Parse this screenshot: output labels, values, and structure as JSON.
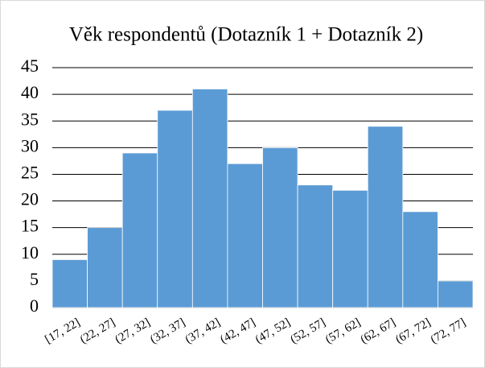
{
  "chart_data": {
    "type": "bar",
    "title": "Věk respondentů (Dotazník 1 + Dotazník 2)",
    "categories": [
      "[17, 22]",
      "(22, 27]",
      "(27, 32]",
      "(32, 37]",
      "(37, 42]",
      "(42, 47]",
      "(47, 52]",
      "(52, 57]",
      "(57, 62]",
      "(62, 67]",
      "(67, 72]",
      "(72, 77]"
    ],
    "values": [
      9,
      15,
      29,
      37,
      41,
      27,
      30,
      23,
      22,
      34,
      18,
      5
    ],
    "color": "#5b9bd5",
    "ylim": [
      0,
      45
    ],
    "yticks": [
      0,
      5,
      10,
      15,
      20,
      25,
      30,
      35,
      40,
      45
    ],
    "grid": true
  }
}
